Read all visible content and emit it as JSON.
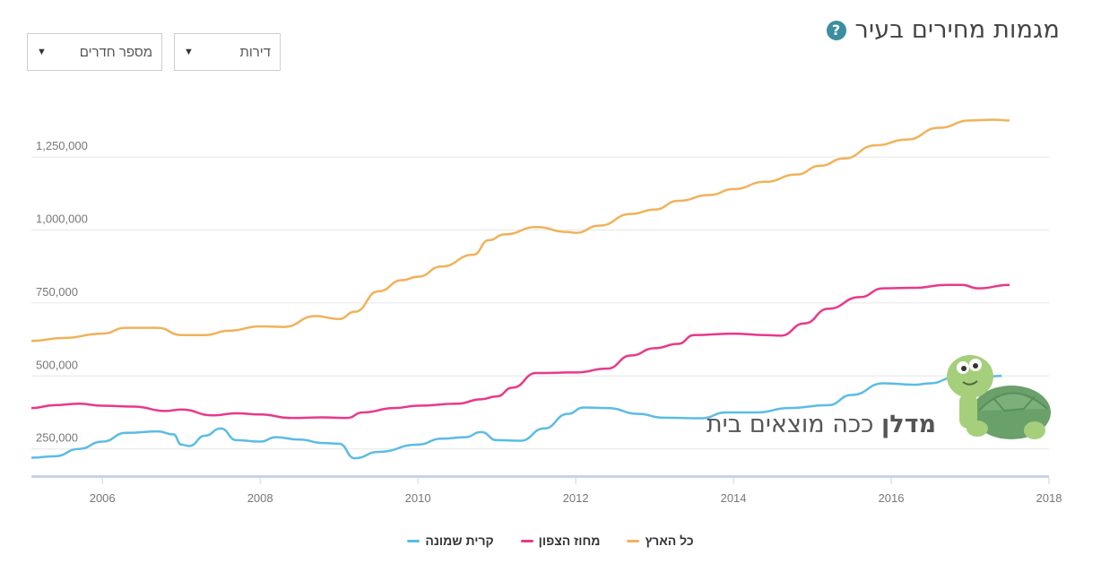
{
  "header": {
    "title": "מגמות מחירים בעיר",
    "help_icon": "question-circle-icon"
  },
  "filters": {
    "property_type": {
      "value": "דירות"
    },
    "rooms": {
      "value": "מספר חדרים"
    }
  },
  "watermark": {
    "brand": "מדלן",
    "tagline": "ככה מוצאים בית"
  },
  "chart_data": {
    "type": "line",
    "xlim": [
      2005.1,
      2018.0
    ],
    "ylim": [
      160000,
      1450000
    ],
    "y_ticks": [
      250000,
      500000,
      750000,
      1000000,
      1250000
    ],
    "y_tick_labels": [
      "250,000",
      "500,000",
      "750,000",
      "1,000,000",
      "1,250,000"
    ],
    "x_ticks": [
      2006,
      2008,
      2010,
      2012,
      2014,
      2016,
      2018
    ],
    "x_tick_labels": [
      "2006",
      "2008",
      "2010",
      "2012",
      "2014",
      "2016",
      "2018"
    ],
    "grid": "horizontal",
    "legend_position": "bottom-center",
    "series": [
      {
        "name": "כל הארץ",
        "color": "#f0b25a",
        "points": [
          [
            2005.1,
            620000
          ],
          [
            2005.5,
            630000
          ],
          [
            2006.0,
            645000
          ],
          [
            2006.3,
            665000
          ],
          [
            2006.7,
            665000
          ],
          [
            2007.0,
            640000
          ],
          [
            2007.3,
            640000
          ],
          [
            2007.6,
            655000
          ],
          [
            2008.0,
            670000
          ],
          [
            2008.3,
            668000
          ],
          [
            2008.7,
            705000
          ],
          [
            2009.0,
            695000
          ],
          [
            2009.2,
            720000
          ],
          [
            2009.5,
            790000
          ],
          [
            2009.8,
            828000
          ],
          [
            2010.0,
            840000
          ],
          [
            2010.3,
            875000
          ],
          [
            2010.7,
            915000
          ],
          [
            2010.9,
            965000
          ],
          [
            2011.1,
            985000
          ],
          [
            2011.5,
            1010000
          ],
          [
            2011.9,
            993000
          ],
          [
            2012.0,
            990000
          ],
          [
            2012.3,
            1015000
          ],
          [
            2012.7,
            1055000
          ],
          [
            2013.0,
            1070000
          ],
          [
            2013.3,
            1100000
          ],
          [
            2013.7,
            1120000
          ],
          [
            2014.0,
            1140000
          ],
          [
            2014.4,
            1165000
          ],
          [
            2014.8,
            1190000
          ],
          [
            2015.1,
            1220000
          ],
          [
            2015.4,
            1245000
          ],
          [
            2015.8,
            1290000
          ],
          [
            2016.2,
            1310000
          ],
          [
            2016.6,
            1350000
          ],
          [
            2017.0,
            1375000
          ],
          [
            2017.3,
            1378000
          ],
          [
            2017.5,
            1375000
          ]
        ]
      },
      {
        "name": "מחוז הצפון",
        "color": "#e8398a",
        "points": [
          [
            2005.1,
            390000
          ],
          [
            2005.4,
            400000
          ],
          [
            2005.7,
            405000
          ],
          [
            2006.0,
            398000
          ],
          [
            2006.4,
            395000
          ],
          [
            2006.8,
            380000
          ],
          [
            2007.0,
            385000
          ],
          [
            2007.4,
            365000
          ],
          [
            2007.7,
            372000
          ],
          [
            2008.0,
            368000
          ],
          [
            2008.4,
            356000
          ],
          [
            2008.8,
            358000
          ],
          [
            2009.1,
            356000
          ],
          [
            2009.3,
            375000
          ],
          [
            2009.7,
            390000
          ],
          [
            2010.0,
            398000
          ],
          [
            2010.5,
            405000
          ],
          [
            2010.8,
            420000
          ],
          [
            2011.0,
            430000
          ],
          [
            2011.2,
            460000
          ],
          [
            2011.5,
            510000
          ],
          [
            2012.0,
            512000
          ],
          [
            2012.4,
            525000
          ],
          [
            2012.7,
            570000
          ],
          [
            2013.0,
            595000
          ],
          [
            2013.3,
            610000
          ],
          [
            2013.5,
            640000
          ],
          [
            2014.0,
            645000
          ],
          [
            2014.4,
            640000
          ],
          [
            2014.6,
            638000
          ],
          [
            2014.9,
            680000
          ],
          [
            2015.2,
            730000
          ],
          [
            2015.6,
            770000
          ],
          [
            2015.9,
            800000
          ],
          [
            2016.3,
            802000
          ],
          [
            2016.7,
            812000
          ],
          [
            2016.9,
            812000
          ],
          [
            2017.1,
            800000
          ],
          [
            2017.5,
            812000
          ]
        ]
      },
      {
        "name": "קרית שמונה",
        "color": "#5bbce4",
        "points": [
          [
            2005.1,
            220000
          ],
          [
            2005.4,
            225000
          ],
          [
            2005.7,
            250000
          ],
          [
            2006.0,
            275000
          ],
          [
            2006.3,
            305000
          ],
          [
            2006.7,
            310000
          ],
          [
            2006.9,
            300000
          ],
          [
            2007.0,
            265000
          ],
          [
            2007.1,
            260000
          ],
          [
            2007.3,
            295000
          ],
          [
            2007.5,
            320000
          ],
          [
            2007.7,
            280000
          ],
          [
            2008.0,
            275000
          ],
          [
            2008.2,
            290000
          ],
          [
            2008.5,
            282000
          ],
          [
            2008.8,
            270000
          ],
          [
            2009.0,
            268000
          ],
          [
            2009.2,
            218000
          ],
          [
            2009.5,
            240000
          ],
          [
            2010.0,
            265000
          ],
          [
            2010.3,
            285000
          ],
          [
            2010.6,
            290000
          ],
          [
            2010.8,
            308000
          ],
          [
            2011.0,
            280000
          ],
          [
            2011.3,
            278000
          ],
          [
            2011.6,
            320000
          ],
          [
            2011.9,
            370000
          ],
          [
            2012.1,
            392000
          ],
          [
            2012.4,
            390000
          ],
          [
            2012.8,
            370000
          ],
          [
            2013.1,
            357000
          ],
          [
            2013.6,
            355000
          ],
          [
            2013.9,
            375000
          ],
          [
            2014.3,
            375000
          ],
          [
            2014.7,
            390000
          ],
          [
            2015.2,
            400000
          ],
          [
            2015.5,
            435000
          ],
          [
            2015.9,
            475000
          ],
          [
            2016.3,
            470000
          ],
          [
            2016.5,
            475000
          ],
          [
            2016.8,
            495000
          ],
          [
            2017.0,
            502000
          ],
          [
            2017.2,
            498000
          ],
          [
            2017.4,
            500000
          ]
        ]
      }
    ]
  }
}
